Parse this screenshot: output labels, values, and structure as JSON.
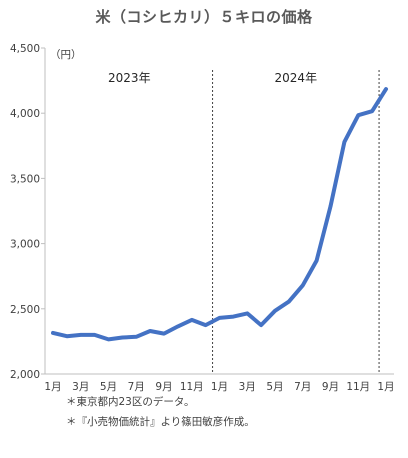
{
  "chart_data": {
    "type": "line",
    "title": "米（コシヒカリ）５キロの価格",
    "ylabel_unit": "（円）",
    "ylim": [
      2000,
      4500
    ],
    "yticks": [
      "2,000",
      "2,500",
      "3,000",
      "3,500",
      "4,000",
      "4,500"
    ],
    "ytick_values": [
      2000,
      2500,
      3000,
      3500,
      4000,
      4500
    ],
    "x_tick_labels": [
      "1月",
      "3月",
      "5月",
      "7月",
      "9月",
      "11月",
      "1月",
      "3月",
      "5月",
      "7月",
      "9月",
      "11月",
      "1月"
    ],
    "x": [
      "2023-01",
      "2023-02",
      "2023-03",
      "2023-04",
      "2023-05",
      "2023-06",
      "2023-07",
      "2023-08",
      "2023-09",
      "2023-10",
      "2023-11",
      "2023-12",
      "2024-01",
      "2024-02",
      "2024-03",
      "2024-04",
      "2024-05",
      "2024-06",
      "2024-07",
      "2024-08",
      "2024-09",
      "2024-10",
      "2024-11",
      "2024-12",
      "2025-01"
    ],
    "series": [
      {
        "color": "#4472C4",
        "values": [
          2315,
          2290,
          2300,
          2300,
          2265,
          2280,
          2285,
          2330,
          2310,
          2365,
          2415,
          2375,
          2430,
          2440,
          2465,
          2375,
          2485,
          2555,
          2680,
          2870,
          3285,
          3780,
          3985,
          4015,
          4185
        ]
      }
    ],
    "year_annotations": [
      "2023年",
      "2024年"
    ],
    "year_dividers_after": [
      "2023-12",
      "2024-12"
    ],
    "grid": false
  },
  "notes": [
    "＊東京都内23区のデータ。",
    "＊『小売物価統計』より篠田敏彦作成。"
  ]
}
